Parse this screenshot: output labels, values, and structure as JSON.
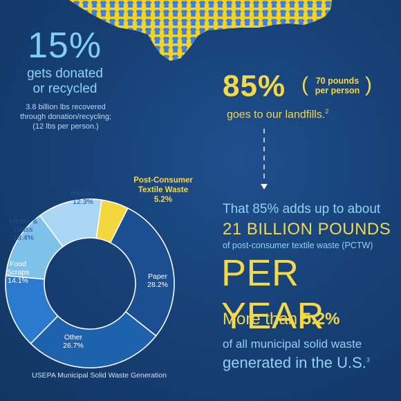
{
  "left_stat": {
    "percent": "15%",
    "headline_1": "gets donated",
    "headline_2": "or recycled",
    "detail_1": "3.8 billion lbs recovered",
    "detail_2": "through donation/recycling;",
    "detail_3": "(12 lbs per person.)"
  },
  "right_stat": {
    "percent": "85%",
    "per_person_1": "70 pounds",
    "per_person_2": "per person",
    "landfills": "goes to our landfills.",
    "landfills_ref": "2",
    "adds_up": "That 85% adds up to about",
    "billion": "21 BILLION POUNDS",
    "pctw": "of post-consumer textile waste (PCTW)",
    "per_year": "PER YEAR",
    "more_than": "More than ",
    "more_than_value": "5.2%",
    "of_all": "of all municipal solid waste",
    "generated": "generated in the U.S.",
    "generated_ref": "3"
  },
  "colors": {
    "background": "#174177",
    "yellow": "#f3d94a",
    "light_blue": "#8fd3f2",
    "map_yellow": "#f6d31c",
    "shirt_blue": "#3f7fe0"
  },
  "chart_data": {
    "type": "pie",
    "variant": "donut",
    "categories": [
      "Post-Consumer Textile Waste",
      "Paper",
      "Other",
      "Food Scraps",
      "Metals & Glass",
      "Plastics"
    ],
    "label_lines": [
      [
        "Post-Consumer",
        "Textile Waste",
        "5.2%"
      ],
      [
        "Paper",
        "28.2%"
      ],
      [
        "Other",
        "26.7%"
      ],
      [
        "Food",
        "Scraps",
        "14.1%"
      ],
      [
        "Metals &",
        "Glass",
        "13.4%"
      ],
      [
        "Plastics",
        "12.3%"
      ]
    ],
    "values": [
      5.2,
      28.2,
      26.7,
      14.1,
      13.4,
      12.3
    ],
    "colors": [
      "#f4d63e",
      "#1b4f92",
      "#1e62ad",
      "#2a7bd0",
      "#7ec2ea",
      "#a9d7f3"
    ],
    "title": "",
    "source": "USEPA Municipal Solid Waste Generation"
  }
}
